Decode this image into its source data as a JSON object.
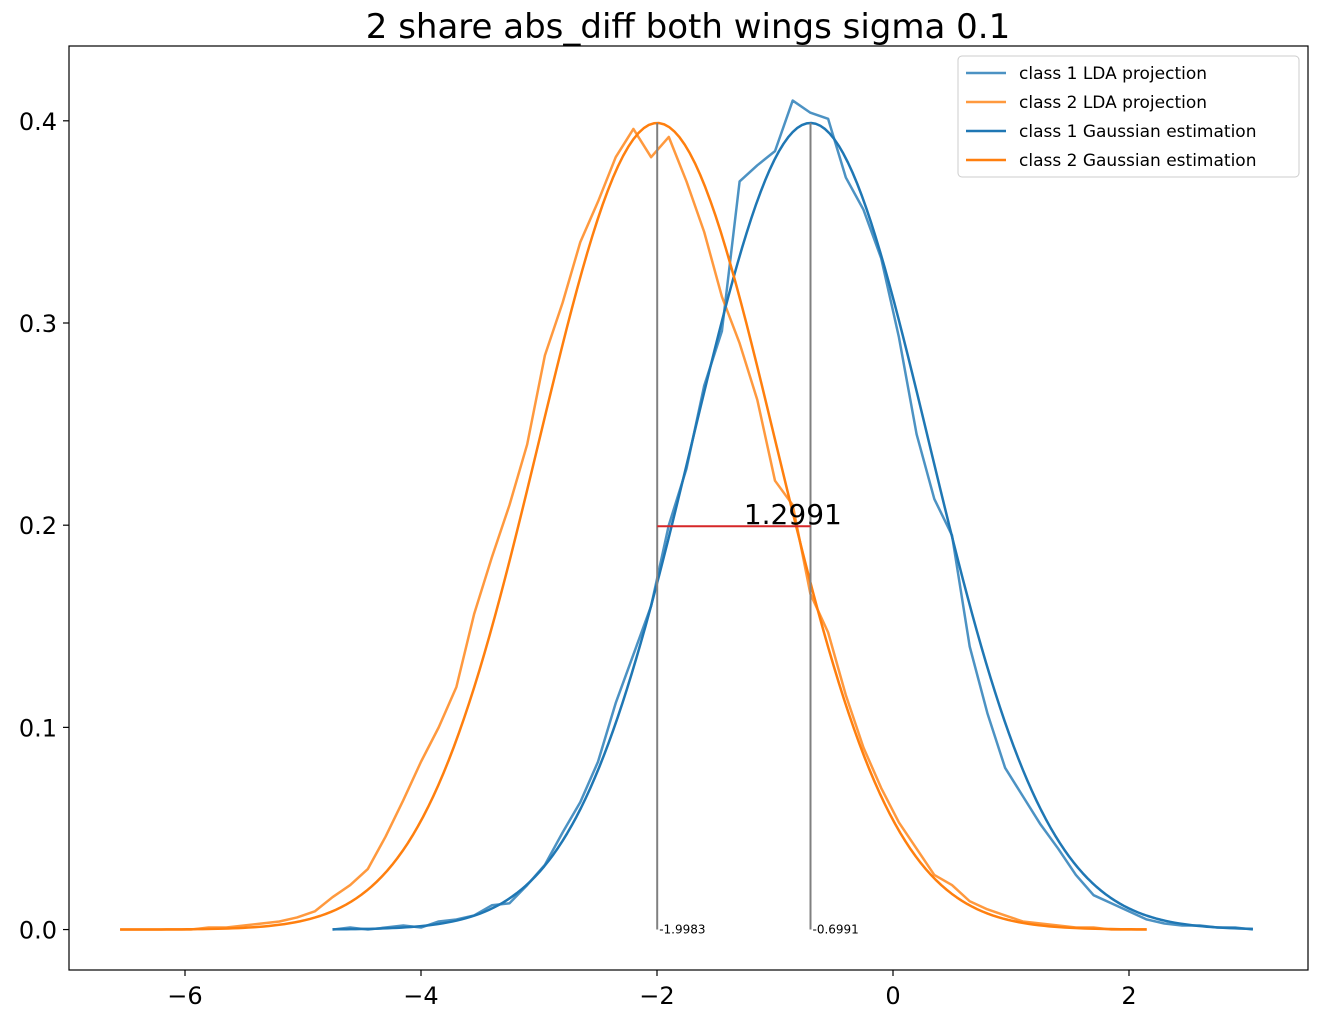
{
  "chart_data": {
    "type": "line",
    "title": "2 share abs_diff both wings sigma 0.1",
    "xlabel": "",
    "ylabel": "",
    "xlim": [
      -7.0,
      7.0
    ],
    "ylim": [
      -0.02,
      0.437
    ],
    "xlim_note": "",
    "x_ticks": [
      -6,
      -4,
      -2,
      0,
      2
    ],
    "x_tick_labels": [
      "−6",
      "−4",
      "−2",
      "0",
      "2"
    ],
    "y_ticks": [
      0.0,
      0.1,
      0.2,
      0.3,
      0.4
    ],
    "y_tick_labels": [
      "0.0",
      "0.1",
      "0.2",
      "0.3",
      "0.4"
    ],
    "grid": false,
    "legend_position": "top-right",
    "colors": {
      "class1": "#1f77b4",
      "class2": "#ff7f0e",
      "vline": "#808080",
      "diff": "#d62728"
    },
    "series": [
      {
        "name": "class 1 LDA projection",
        "style": "empirical",
        "color": "#1f77b4",
        "x": [
          -4.75,
          -4.6,
          -4.45,
          -4.3,
          -4.15,
          -4.0,
          -3.85,
          -3.7,
          -3.55,
          -3.4,
          -3.25,
          -3.1,
          -2.95,
          -2.8,
          -2.65,
          -2.5,
          -2.35,
          -2.2,
          -2.05,
          -1.9,
          -1.75,
          -1.6,
          -1.45,
          -1.3,
          -1.15,
          -1.0,
          -0.85,
          -0.7,
          -0.55,
          -0.4,
          -0.25,
          -0.1,
          0.05,
          0.2,
          0.35,
          0.5,
          0.65,
          0.8,
          0.95,
          1.1,
          1.25,
          1.4,
          1.55,
          1.7,
          1.85,
          2.0,
          2.15,
          2.3,
          2.45,
          2.6,
          2.75,
          2.9,
          3.05
        ],
        "y": [
          0.0,
          0.001,
          0.0,
          0.001,
          0.002,
          0.001,
          0.004,
          0.005,
          0.007,
          0.012,
          0.013,
          0.022,
          0.032,
          0.048,
          0.063,
          0.083,
          0.112,
          0.136,
          0.16,
          0.2,
          0.228,
          0.269,
          0.296,
          0.37,
          0.378,
          0.385,
          0.41,
          0.404,
          0.401,
          0.372,
          0.356,
          0.332,
          0.293,
          0.245,
          0.213,
          0.195,
          0.14,
          0.107,
          0.08,
          0.066,
          0.052,
          0.04,
          0.027,
          0.017,
          0.013,
          0.009,
          0.005,
          0.003,
          0.002,
          0.002,
          0.001,
          0.001,
          0.0
        ]
      },
      {
        "name": "class 2 LDA projection",
        "style": "empirical",
        "color": "#ff7f0e",
        "x": [
          -6.55,
          -6.4,
          -6.25,
          -6.1,
          -5.95,
          -5.8,
          -5.65,
          -5.5,
          -5.35,
          -5.2,
          -5.05,
          -4.9,
          -4.75,
          -4.6,
          -4.45,
          -4.3,
          -4.15,
          -4.0,
          -3.85,
          -3.7,
          -3.55,
          -3.4,
          -3.25,
          -3.1,
          -2.95,
          -2.8,
          -2.65,
          -2.5,
          -2.35,
          -2.2,
          -2.05,
          -1.9,
          -1.75,
          -1.6,
          -1.45,
          -1.3,
          -1.15,
          -1.0,
          -0.85,
          -0.7,
          -0.55,
          -0.4,
          -0.25,
          -0.1,
          0.05,
          0.2,
          0.35,
          0.5,
          0.65,
          0.8,
          0.95,
          1.1,
          1.25,
          1.4,
          1.55,
          1.7,
          1.85,
          2.0,
          2.15
        ],
        "y": [
          0.0,
          0.0,
          0.0,
          0.0,
          0.0,
          0.001,
          0.001,
          0.002,
          0.003,
          0.004,
          0.006,
          0.009,
          0.016,
          0.022,
          0.03,
          0.046,
          0.064,
          0.083,
          0.1,
          0.12,
          0.156,
          0.184,
          0.21,
          0.24,
          0.284,
          0.31,
          0.34,
          0.36,
          0.382,
          0.396,
          0.382,
          0.392,
          0.37,
          0.345,
          0.313,
          0.29,
          0.262,
          0.222,
          0.21,
          0.166,
          0.147,
          0.116,
          0.09,
          0.07,
          0.053,
          0.04,
          0.027,
          0.022,
          0.014,
          0.01,
          0.007,
          0.004,
          0.003,
          0.002,
          0.001,
          0.001,
          0.0,
          0.0,
          0.0
        ]
      },
      {
        "name": "class 1 Gaussian estimation",
        "style": "gaussian",
        "color": "#1f77b4",
        "mean": -0.6991,
        "std": 1.0,
        "x_range": [
          -4.75,
          3.05
        ]
      },
      {
        "name": "class 2 Gaussian estimation",
        "style": "gaussian",
        "color": "#ff7f0e",
        "mean": -1.9983,
        "std": 1.0,
        "x_range": [
          -6.55,
          2.15
        ]
      }
    ],
    "annotations": {
      "mean1_label": "-1.9983",
      "mean2_label": "-0.6991",
      "mean1_x": -1.9983,
      "mean2_x": -0.6991,
      "diff_label": "1.2991",
      "diff_y": 0.1995
    }
  }
}
